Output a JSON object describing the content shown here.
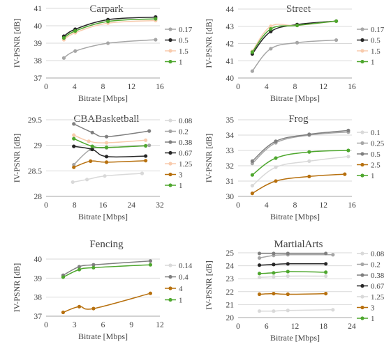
{
  "colors": {
    "gray_light": "#d9d9d9",
    "gray_mid": "#a6a6a6",
    "gray_dark": "#7f7f7f",
    "black": "#262626",
    "peach": "#f8cbad",
    "brown": "#b7700e",
    "green": "#4ea72e",
    "grid": "#d9d9d9",
    "axis": "#a6a6a6",
    "text": "#404040"
  },
  "chart_data": [
    {
      "type": "line",
      "title": "Carpark",
      "xlabel": "Bitrate [Mbps]",
      "ylabel": "IV-PSNR [dB]",
      "xlim": [
        0,
        16
      ],
      "xticks": [
        0,
        4,
        8,
        12,
        16
      ],
      "ylim": [
        37,
        41
      ],
      "yticks": [
        37,
        38,
        39,
        40,
        41
      ],
      "grid": true,
      "legend": "right",
      "series": [
        {
          "name": "0.17",
          "color": "gray_mid",
          "points": [
            [
              2.5,
              38.15
            ],
            [
              4.1,
              38.55
            ],
            [
              8.7,
              39.0
            ],
            [
              15.4,
              39.2
            ]
          ]
        },
        {
          "name": "0.5",
          "color": "black",
          "points": [
            [
              2.5,
              39.4
            ],
            [
              4.1,
              39.8
            ],
            [
              8.7,
              40.35
            ],
            [
              15.4,
              40.5
            ]
          ]
        },
        {
          "name": "1.5",
          "color": "peach",
          "points": [
            [
              2.5,
              39.2
            ],
            [
              4.1,
              39.6
            ],
            [
              8.7,
              40.15
            ],
            [
              15.4,
              40.3
            ]
          ]
        },
        {
          "name": "1",
          "color": "green",
          "points": [
            [
              2.5,
              39.3
            ],
            [
              4.1,
              39.7
            ],
            [
              8.7,
              40.25
            ],
            [
              15.4,
              40.4
            ]
          ]
        }
      ]
    },
    {
      "type": "line",
      "title": "Street",
      "xlabel": "Bitrate [Mbps]",
      "ylabel": "IV-PSNR [dB]",
      "xlim": [
        0,
        16
      ],
      "xticks": [
        0,
        4,
        8,
        12,
        16
      ],
      "ylim": [
        40,
        44
      ],
      "yticks": [
        40,
        41,
        42,
        43,
        44
      ],
      "grid": true,
      "legend": "right",
      "series": [
        {
          "name": "0.17",
          "color": "gray_mid",
          "points": [
            [
              2.0,
              40.4
            ],
            [
              4.6,
              41.7
            ],
            [
              8.3,
              42.05
            ],
            [
              13.8,
              42.2
            ]
          ]
        },
        {
          "name": "0.5",
          "color": "black",
          "points": [
            [
              2.0,
              41.4
            ],
            [
              4.6,
              42.7
            ],
            [
              8.3,
              43.1
            ],
            [
              13.8,
              43.3
            ]
          ]
        },
        {
          "name": "1.5",
          "color": "peach",
          "points": [
            [
              2.0,
              41.55
            ],
            [
              4.6,
              43.0
            ],
            [
              8.3,
              43.05
            ],
            [
              13.8,
              43.3
            ]
          ]
        },
        {
          "name": "1",
          "color": "green",
          "points": [
            [
              2.0,
              41.5
            ],
            [
              4.6,
              42.85
            ],
            [
              8.3,
              43.05
            ],
            [
              13.8,
              43.3
            ]
          ]
        }
      ]
    },
    {
      "type": "line",
      "title": "CBABasketball",
      "xlabel": "Bitrate [Mbps]",
      "ylabel": "IV-PSNR [dB]",
      "xlim": [
        0,
        32
      ],
      "xticks": [
        0,
        8,
        16,
        24,
        32
      ],
      "ylim": [
        28,
        29.5
      ],
      "yticks": [
        28,
        28.5,
        29,
        29.5
      ],
      "grid": true,
      "legend": "right",
      "series": [
        {
          "name": "0.08",
          "color": "gray_light",
          "points": [
            [
              7.5,
              28.28
            ],
            [
              11.5,
              28.33
            ],
            [
              16.5,
              28.4
            ],
            [
              27.0,
              28.45
            ]
          ]
        },
        {
          "name": "0.2",
          "color": "gray_mid",
          "points": [
            [
              7.8,
              28.62
            ],
            [
              12.5,
              28.92
            ],
            [
              17.0,
              28.95
            ],
            [
              29.0,
              29.0
            ]
          ]
        },
        {
          "name": "0.38",
          "color": "gray_dark",
          "points": [
            [
              7.8,
              29.42
            ],
            [
              13.0,
              29.25
            ],
            [
              17.0,
              29.17
            ],
            [
              29.0,
              29.28
            ]
          ]
        },
        {
          "name": "0.67",
          "color": "black",
          "points": [
            [
              7.8,
              28.98
            ],
            [
              13.0,
              28.92
            ],
            [
              17.0,
              28.78
            ],
            [
              28.0,
              28.79
            ]
          ]
        },
        {
          "name": "1.25",
          "color": "peach",
          "points": [
            [
              7.8,
              29.2
            ],
            [
              12.0,
              29.08
            ],
            [
              17.0,
              29.05
            ],
            [
              28.0,
              29.1
            ]
          ]
        },
        {
          "name": "3",
          "color": "brown",
          "points": [
            [
              7.8,
              28.57
            ],
            [
              12.5,
              28.69
            ],
            [
              17.0,
              28.67
            ],
            [
              28.0,
              28.7
            ]
          ]
        },
        {
          "name": "1",
          "color": "green",
          "points": [
            [
              7.8,
              29.13
            ],
            [
              13.0,
              28.98
            ],
            [
              17.0,
              28.96
            ],
            [
              28.0,
              28.99
            ]
          ]
        }
      ]
    },
    {
      "type": "line",
      "title": "Frog",
      "xlabel": "Bitrate [Mbps]",
      "ylabel": "IV-PSNR [dB]",
      "xlim": [
        0,
        16
      ],
      "xticks": [
        0,
        4,
        8,
        12,
        16
      ],
      "ylim": [
        30,
        35
      ],
      "yticks": [
        30,
        31,
        32,
        33,
        34,
        35
      ],
      "grid": true,
      "legend": "right",
      "series": [
        {
          "name": "0.1",
          "color": "gray_light",
          "points": [
            [
              2.0,
              30.7
            ],
            [
              5.3,
              31.9
            ],
            [
              10.0,
              32.3
            ],
            [
              15.5,
              32.6
            ]
          ]
        },
        {
          "name": "0.25",
          "color": "gray_mid",
          "points": [
            [
              2.0,
              32.15
            ],
            [
              5.3,
              33.5
            ],
            [
              10.0,
              34.0
            ],
            [
              15.5,
              34.2
            ]
          ]
        },
        {
          "name": "0.5",
          "color": "gray_dark",
          "points": [
            [
              2.0,
              32.3
            ],
            [
              5.3,
              33.6
            ],
            [
              10.0,
              34.05
            ],
            [
              15.5,
              34.3
            ]
          ]
        },
        {
          "name": "2.5",
          "color": "brown",
          "points": [
            [
              2.0,
              30.2
            ],
            [
              5.3,
              31.0
            ],
            [
              10.0,
              31.3
            ],
            [
              15.0,
              31.45
            ]
          ]
        },
        {
          "name": "1",
          "color": "green",
          "points": [
            [
              2.0,
              31.4
            ],
            [
              5.3,
              32.5
            ],
            [
              10.0,
              32.9
            ],
            [
              15.5,
              33.0
            ]
          ]
        }
      ]
    },
    {
      "type": "line",
      "title": "Fencing",
      "xlabel": "Bitrate [Mbps]",
      "ylabel": "IV-PSNR [dB]",
      "xlim": [
        0,
        12
      ],
      "xticks": [
        0,
        3,
        6,
        9,
        12
      ],
      "ylim": [
        37,
        40
      ],
      "yticks": [
        37,
        38,
        39,
        40
      ],
      "grid": true,
      "legend": "right",
      "series": [
        {
          "name": "0.14",
          "color": "gray_light",
          "points": []
        },
        {
          "name": "0.4",
          "color": "gray_dark",
          "points": [
            [
              1.8,
              39.15
            ],
            [
              3.5,
              39.6
            ],
            [
              5.0,
              39.7
            ],
            [
              11.0,
              39.9
            ]
          ]
        },
        {
          "name": "4",
          "color": "brown",
          "points": [
            [
              1.8,
              37.2
            ],
            [
              3.5,
              37.5
            ],
            [
              5.0,
              37.4
            ],
            [
              11.0,
              38.2
            ]
          ]
        },
        {
          "name": "1",
          "color": "green",
          "points": [
            [
              1.8,
              39.05
            ],
            [
              3.5,
              39.45
            ],
            [
              5.0,
              39.55
            ],
            [
              11.0,
              39.7
            ]
          ]
        }
      ]
    },
    {
      "type": "line",
      "title": "MartialArts",
      "xlabel": "Bitrate [Mbps]",
      "ylabel": "IV-PSNR [dB]",
      "xlim": [
        0,
        24
      ],
      "xticks": [
        0,
        6,
        12,
        18,
        24
      ],
      "ylim": [
        20,
        25
      ],
      "yticks": [
        20,
        21,
        22,
        23,
        24,
        25
      ],
      "grid": true,
      "legend": "right",
      "series": [
        {
          "name": "0.08",
          "color": "gray_light",
          "points": [
            [
              4.5,
              20.5
            ],
            [
              7.5,
              20.5
            ],
            [
              10.5,
              20.55
            ],
            [
              20.0,
              20.6
            ]
          ]
        },
        {
          "name": "0.2",
          "color": "gray_mid",
          "points": [
            [
              4.5,
              24.6
            ],
            [
              7.5,
              24.8
            ],
            [
              10.5,
              24.85
            ],
            [
              20.0,
              24.85
            ]
          ]
        },
        {
          "name": "0.38",
          "color": "gray_dark",
          "points": [
            [
              4.5,
              24.95
            ],
            [
              7.5,
              24.95
            ],
            [
              10.5,
              24.95
            ],
            [
              18.5,
              24.95
            ]
          ]
        },
        {
          "name": "0.67",
          "color": "black",
          "points": [
            [
              4.5,
              24.05
            ],
            [
              7.5,
              24.1
            ],
            [
              10.5,
              24.15
            ],
            [
              18.5,
              24.15
            ]
          ]
        },
        {
          "name": "1.25",
          "color": "gray_light",
          "points": [
            [
              4.5,
              23.1
            ],
            [
              7.5,
              23.15
            ],
            [
              10.5,
              23.2
            ],
            [
              18.5,
              23.2
            ]
          ]
        },
        {
          "name": "3",
          "color": "brown",
          "points": [
            [
              4.5,
              21.8
            ],
            [
              7.5,
              21.85
            ],
            [
              10.5,
              21.8
            ],
            [
              18.5,
              21.85
            ]
          ]
        },
        {
          "name": "1",
          "color": "green",
          "points": [
            [
              4.5,
              23.4
            ],
            [
              7.5,
              23.45
            ],
            [
              10.5,
              23.55
            ],
            [
              18.5,
              23.5
            ]
          ]
        }
      ]
    }
  ]
}
